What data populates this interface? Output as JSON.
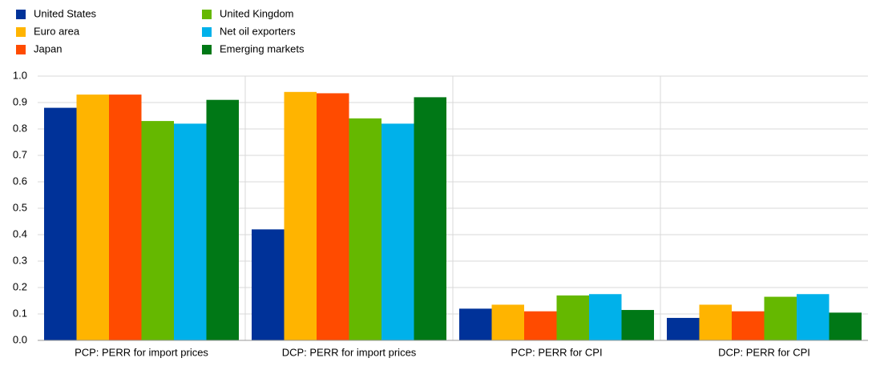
{
  "chart_data": {
    "type": "bar",
    "categories": [
      "PCP: PERR for import prices",
      "DCP: PERR for import prices",
      "PCP: PERR for CPI",
      "DCP: PERR for CPI"
    ],
    "series": [
      {
        "name": "United States",
        "color": "#003299",
        "values": [
          0.88,
          0.42,
          0.12,
          0.085
        ]
      },
      {
        "name": "Euro area",
        "color": "#ffb400",
        "values": [
          0.93,
          0.94,
          0.135,
          0.135
        ]
      },
      {
        "name": "Japan",
        "color": "#ff4b00",
        "values": [
          0.93,
          0.935,
          0.11,
          0.11
        ]
      },
      {
        "name": "United Kingdom",
        "color": "#65b800",
        "values": [
          0.83,
          0.84,
          0.17,
          0.165
        ]
      },
      {
        "name": "Net oil exporters",
        "color": "#00b1ea",
        "values": [
          0.82,
          0.82,
          0.175,
          0.175
        ]
      },
      {
        "name": "Emerging markets",
        "color": "#007816",
        "values": [
          0.91,
          0.92,
          0.115,
          0.105
        ]
      }
    ],
    "ylim": [
      0,
      1
    ],
    "yticks": [
      {
        "value": 0,
        "label": "0.0"
      },
      0.1,
      0.2,
      0.3,
      0.4,
      0.5,
      0.6,
      0.7,
      0.8,
      0.9,
      {
        "value": 1,
        "label": "1.0"
      }
    ],
    "grid": true
  }
}
